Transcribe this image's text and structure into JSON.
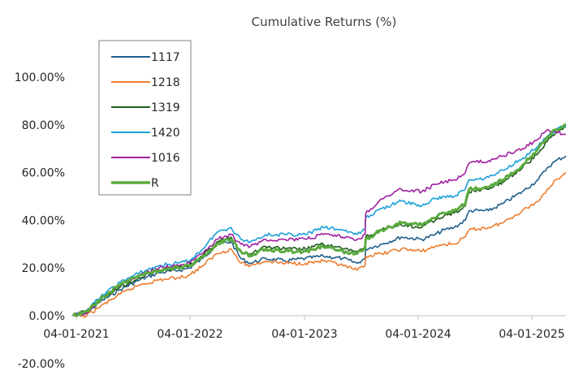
{
  "chart_data": {
    "type": "line",
    "title": "Cumulative Returns (%)",
    "xlabel": "",
    "ylabel": "",
    "x_ticks": [
      "04-01-2021",
      "04-01-2022",
      "04-01-2023",
      "04-01-2024",
      "04-01-2025"
    ],
    "y_ticks": [
      "-20.00%",
      "0.00%",
      "20.00%",
      "40.00%",
      "60.00%",
      "80.00%",
      "100.00%"
    ],
    "ylim": [
      -20,
      100
    ],
    "xlim": [
      "2021-01-04",
      "2025-04-01"
    ],
    "grid": false,
    "legend_position": "top-left",
    "series": [
      {
        "name": "1117",
        "color": "#1f5f8b",
        "points": [
          [
            "2021-01-04",
            0
          ],
          [
            "2021-02-15",
            1
          ],
          [
            "2021-04-01",
            6
          ],
          [
            "2021-06-01",
            11
          ],
          [
            "2021-08-01",
            15
          ],
          [
            "2021-10-01",
            18
          ],
          [
            "2021-12-01",
            19
          ],
          [
            "2022-01-04",
            20
          ],
          [
            "2022-02-15",
            24
          ],
          [
            "2022-04-01",
            30
          ],
          [
            "2022-05-15",
            31
          ],
          [
            "2022-06-15",
            24
          ],
          [
            "2022-07-15",
            22
          ],
          [
            "2022-09-01",
            24
          ],
          [
            "2022-11-01",
            23
          ],
          [
            "2023-01-04",
            24
          ],
          [
            "2023-03-01",
            25
          ],
          [
            "2023-05-01",
            24
          ],
          [
            "2023-06-15",
            22
          ],
          [
            "2023-07-10",
            24
          ],
          [
            "2023-07-12",
            28
          ],
          [
            "2023-09-01",
            30
          ],
          [
            "2023-11-01",
            33
          ],
          [
            "2024-01-04",
            32
          ],
          [
            "2024-02-15",
            34
          ],
          [
            "2024-03-15",
            36
          ],
          [
            "2024-04-15",
            37
          ],
          [
            "2024-05-20",
            40
          ],
          [
            "2024-06-01",
            44
          ],
          [
            "2024-08-01",
            44
          ],
          [
            "2024-09-15",
            47
          ],
          [
            "2024-11-15",
            52
          ],
          [
            "2025-01-04",
            57
          ],
          [
            "2025-02-01",
            62
          ],
          [
            "2025-03-01",
            65
          ],
          [
            "2025-04-01",
            67
          ]
        ]
      },
      {
        "name": "1218",
        "color": "#ed7d31",
        "points": [
          [
            "2021-01-04",
            0
          ],
          [
            "2021-02-15",
            0
          ],
          [
            "2021-04-01",
            4
          ],
          [
            "2021-06-01",
            9
          ],
          [
            "2021-08-01",
            13
          ],
          [
            "2021-10-01",
            15
          ],
          [
            "2021-12-01",
            16
          ],
          [
            "2022-01-04",
            17
          ],
          [
            "2022-02-15",
            21
          ],
          [
            "2022-04-01",
            26
          ],
          [
            "2022-05-15",
            28
          ],
          [
            "2022-06-15",
            22
          ],
          [
            "2022-07-15",
            21
          ],
          [
            "2022-09-01",
            23
          ],
          [
            "2022-11-01",
            22
          ],
          [
            "2023-01-04",
            22
          ],
          [
            "2023-03-01",
            23
          ],
          [
            "2023-05-01",
            21
          ],
          [
            "2023-06-15",
            19
          ],
          [
            "2023-07-10",
            21
          ],
          [
            "2023-07-12",
            25
          ],
          [
            "2023-09-01",
            26
          ],
          [
            "2023-11-01",
            28
          ],
          [
            "2024-01-04",
            27
          ],
          [
            "2024-02-15",
            29
          ],
          [
            "2024-03-15",
            30
          ],
          [
            "2024-04-15",
            30
          ],
          [
            "2024-05-20",
            33
          ],
          [
            "2024-06-01",
            36
          ],
          [
            "2024-08-01",
            37
          ],
          [
            "2024-09-15",
            39
          ],
          [
            "2024-11-15",
            44
          ],
          [
            "2025-01-04",
            48
          ],
          [
            "2025-02-01",
            53
          ],
          [
            "2025-03-01",
            57
          ],
          [
            "2025-04-01",
            60
          ]
        ]
      },
      {
        "name": "1319",
        "color": "#1e5b1e",
        "points": [
          [
            "2021-01-04",
            0
          ],
          [
            "2021-02-15",
            2
          ],
          [
            "2021-04-01",
            7
          ],
          [
            "2021-06-01",
            12
          ],
          [
            "2021-08-01",
            16
          ],
          [
            "2021-10-01",
            19
          ],
          [
            "2021-12-01",
            20
          ],
          [
            "2022-01-04",
            21
          ],
          [
            "2022-02-15",
            25
          ],
          [
            "2022-04-01",
            31
          ],
          [
            "2022-05-15",
            33
          ],
          [
            "2022-06-15",
            27
          ],
          [
            "2022-07-15",
            26
          ],
          [
            "2022-09-01",
            29
          ],
          [
            "2022-11-01",
            28
          ],
          [
            "2023-01-04",
            28
          ],
          [
            "2023-03-01",
            30
          ],
          [
            "2023-05-01",
            28
          ],
          [
            "2023-06-15",
            27
          ],
          [
            "2023-07-10",
            29
          ],
          [
            "2023-07-12",
            33
          ],
          [
            "2023-09-01",
            36
          ],
          [
            "2023-11-01",
            38
          ],
          [
            "2024-01-04",
            37
          ],
          [
            "2024-02-15",
            40
          ],
          [
            "2024-03-15",
            42
          ],
          [
            "2024-04-15",
            43
          ],
          [
            "2024-05-20",
            46
          ],
          [
            "2024-06-01",
            52
          ],
          [
            "2024-08-01",
            53
          ],
          [
            "2024-09-15",
            56
          ],
          [
            "2024-11-15",
            62
          ],
          [
            "2025-01-04",
            68
          ],
          [
            "2025-02-01",
            73
          ],
          [
            "2025-03-01",
            77
          ],
          [
            "2025-04-01",
            79
          ]
        ]
      },
      {
        "name": "1420",
        "color": "#1aa0d8",
        "points": [
          [
            "2021-01-04",
            0
          ],
          [
            "2021-02-15",
            2
          ],
          [
            "2021-04-01",
            8
          ],
          [
            "2021-06-01",
            14
          ],
          [
            "2021-08-01",
            18
          ],
          [
            "2021-10-01",
            21
          ],
          [
            "2021-12-01",
            22
          ],
          [
            "2022-01-04",
            23
          ],
          [
            "2022-02-15",
            28
          ],
          [
            "2022-04-01",
            35
          ],
          [
            "2022-05-15",
            37
          ],
          [
            "2022-06-15",
            32
          ],
          [
            "2022-07-15",
            31
          ],
          [
            "2022-09-01",
            34
          ],
          [
            "2022-11-01",
            34
          ],
          [
            "2023-01-04",
            34
          ],
          [
            "2023-03-01",
            37
          ],
          [
            "2023-05-01",
            36
          ],
          [
            "2023-06-15",
            34
          ],
          [
            "2023-07-10",
            36
          ],
          [
            "2023-07-12",
            41
          ],
          [
            "2023-09-01",
            45
          ],
          [
            "2023-11-01",
            48
          ],
          [
            "2024-01-04",
            46
          ],
          [
            "2024-02-15",
            49
          ],
          [
            "2024-03-15",
            50
          ],
          [
            "2024-04-15",
            50
          ],
          [
            "2024-05-20",
            53
          ],
          [
            "2024-06-01",
            57
          ],
          [
            "2024-08-01",
            58
          ],
          [
            "2024-09-15",
            61
          ],
          [
            "2024-11-15",
            66
          ],
          [
            "2025-01-04",
            71
          ],
          [
            "2025-02-01",
            75
          ],
          [
            "2025-03-01",
            78
          ],
          [
            "2025-04-01",
            80
          ]
        ]
      },
      {
        "name": "1016",
        "color": "#a020a0",
        "points": [
          [
            "2021-01-04",
            0
          ],
          [
            "2021-02-15",
            1
          ],
          [
            "2021-04-01",
            7
          ],
          [
            "2021-06-01",
            13
          ],
          [
            "2021-08-01",
            17
          ],
          [
            "2021-10-01",
            20
          ],
          [
            "2021-12-01",
            21
          ],
          [
            "2022-01-04",
            22
          ],
          [
            "2022-02-15",
            26
          ],
          [
            "2022-04-01",
            32
          ],
          [
            "2022-05-15",
            34
          ],
          [
            "2022-06-15",
            30
          ],
          [
            "2022-07-15",
            29
          ],
          [
            "2022-09-01",
            32
          ],
          [
            "2022-11-01",
            32
          ],
          [
            "2023-01-04",
            32
          ],
          [
            "2023-03-01",
            34
          ],
          [
            "2023-05-01",
            33
          ],
          [
            "2023-06-15",
            32
          ],
          [
            "2023-07-10",
            34
          ],
          [
            "2023-07-12",
            43
          ],
          [
            "2023-09-01",
            49
          ],
          [
            "2023-11-01",
            53
          ],
          [
            "2024-01-04",
            52
          ],
          [
            "2024-02-15",
            55
          ],
          [
            "2024-03-15",
            56
          ],
          [
            "2024-04-15",
            57
          ],
          [
            "2024-05-20",
            60
          ],
          [
            "2024-06-01",
            64
          ],
          [
            "2024-08-01",
            65
          ],
          [
            "2024-09-15",
            67
          ],
          [
            "2024-11-15",
            70
          ],
          [
            "2025-01-04",
            74
          ],
          [
            "2025-02-01",
            78
          ],
          [
            "2025-03-01",
            77
          ],
          [
            "2025-04-01",
            76
          ]
        ]
      },
      {
        "name": "R",
        "color": "#5aab3e",
        "points": [
          [
            "2021-01-04",
            0
          ],
          [
            "2021-02-15",
            2
          ],
          [
            "2021-04-01",
            7
          ],
          [
            "2021-06-01",
            13
          ],
          [
            "2021-08-01",
            17
          ],
          [
            "2021-10-01",
            19
          ],
          [
            "2021-12-01",
            20
          ],
          [
            "2022-01-04",
            21
          ],
          [
            "2022-02-15",
            25
          ],
          [
            "2022-04-01",
            30
          ],
          [
            "2022-05-15",
            32
          ],
          [
            "2022-06-15",
            27
          ],
          [
            "2022-07-15",
            25
          ],
          [
            "2022-09-01",
            28
          ],
          [
            "2022-11-01",
            27
          ],
          [
            "2023-01-04",
            27
          ],
          [
            "2023-03-01",
            29
          ],
          [
            "2023-05-01",
            27
          ],
          [
            "2023-06-15",
            26
          ],
          [
            "2023-07-10",
            28
          ],
          [
            "2023-07-12",
            32
          ],
          [
            "2023-09-01",
            36
          ],
          [
            "2023-11-01",
            39
          ],
          [
            "2024-01-04",
            38
          ],
          [
            "2024-02-15",
            41
          ],
          [
            "2024-03-15",
            43
          ],
          [
            "2024-04-15",
            44
          ],
          [
            "2024-05-20",
            47
          ],
          [
            "2024-06-01",
            53
          ],
          [
            "2024-08-01",
            54
          ],
          [
            "2024-09-15",
            57
          ],
          [
            "2024-11-15",
            63
          ],
          [
            "2025-01-04",
            70
          ],
          [
            "2025-02-01",
            75
          ],
          [
            "2025-03-01",
            78
          ],
          [
            "2025-04-01",
            80
          ]
        ]
      }
    ]
  }
}
